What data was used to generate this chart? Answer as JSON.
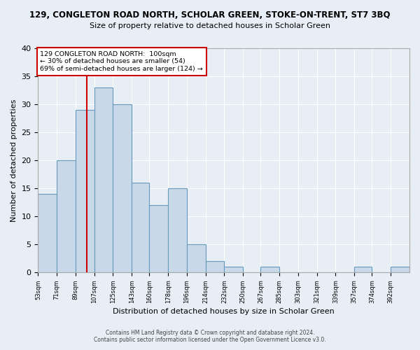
{
  "title_line1": "129, CONGLETON ROAD NORTH, SCHOLAR GREEN, STOKE-ON-TRENT, ST7 3BQ",
  "title_line2": "Size of property relative to detached houses in Scholar Green",
  "xlabel": "Distribution of detached houses by size in Scholar Green",
  "ylabel": "Number of detached properties",
  "footer1": "Contains HM Land Registry data © Crown copyright and database right 2024.",
  "footer2": "Contains public sector information licensed under the Open Government Licence v3.0.",
  "annotation_line1": "129 CONGLETON ROAD NORTH:  100sqm",
  "annotation_line2": "← 30% of detached houses are smaller (54)",
  "annotation_line3": "69% of semi-detached houses are larger (124) →",
  "bar_color": "#c8d8e8",
  "bar_edge_color": "#6699bb",
  "red_line_color": "#cc0000",
  "annotation_box_edge_color": "#cc0000",
  "background_color": "#e8eef5",
  "grid_color": "#ffffff",
  "bins": [
    53,
    71,
    89,
    107,
    125,
    143,
    160,
    178,
    196,
    214,
    232,
    250,
    267,
    285,
    303,
    321,
    339,
    357,
    374,
    392,
    410
  ],
  "counts": [
    14,
    20,
    29,
    33,
    30,
    16,
    12,
    15,
    5,
    2,
    1,
    0,
    1,
    0,
    0,
    0,
    0,
    1,
    0,
    1
  ],
  "property_size": 100,
  "ylim": [
    0,
    40
  ],
  "yticks": [
    0,
    5,
    10,
    15,
    20,
    25,
    30,
    35,
    40
  ]
}
